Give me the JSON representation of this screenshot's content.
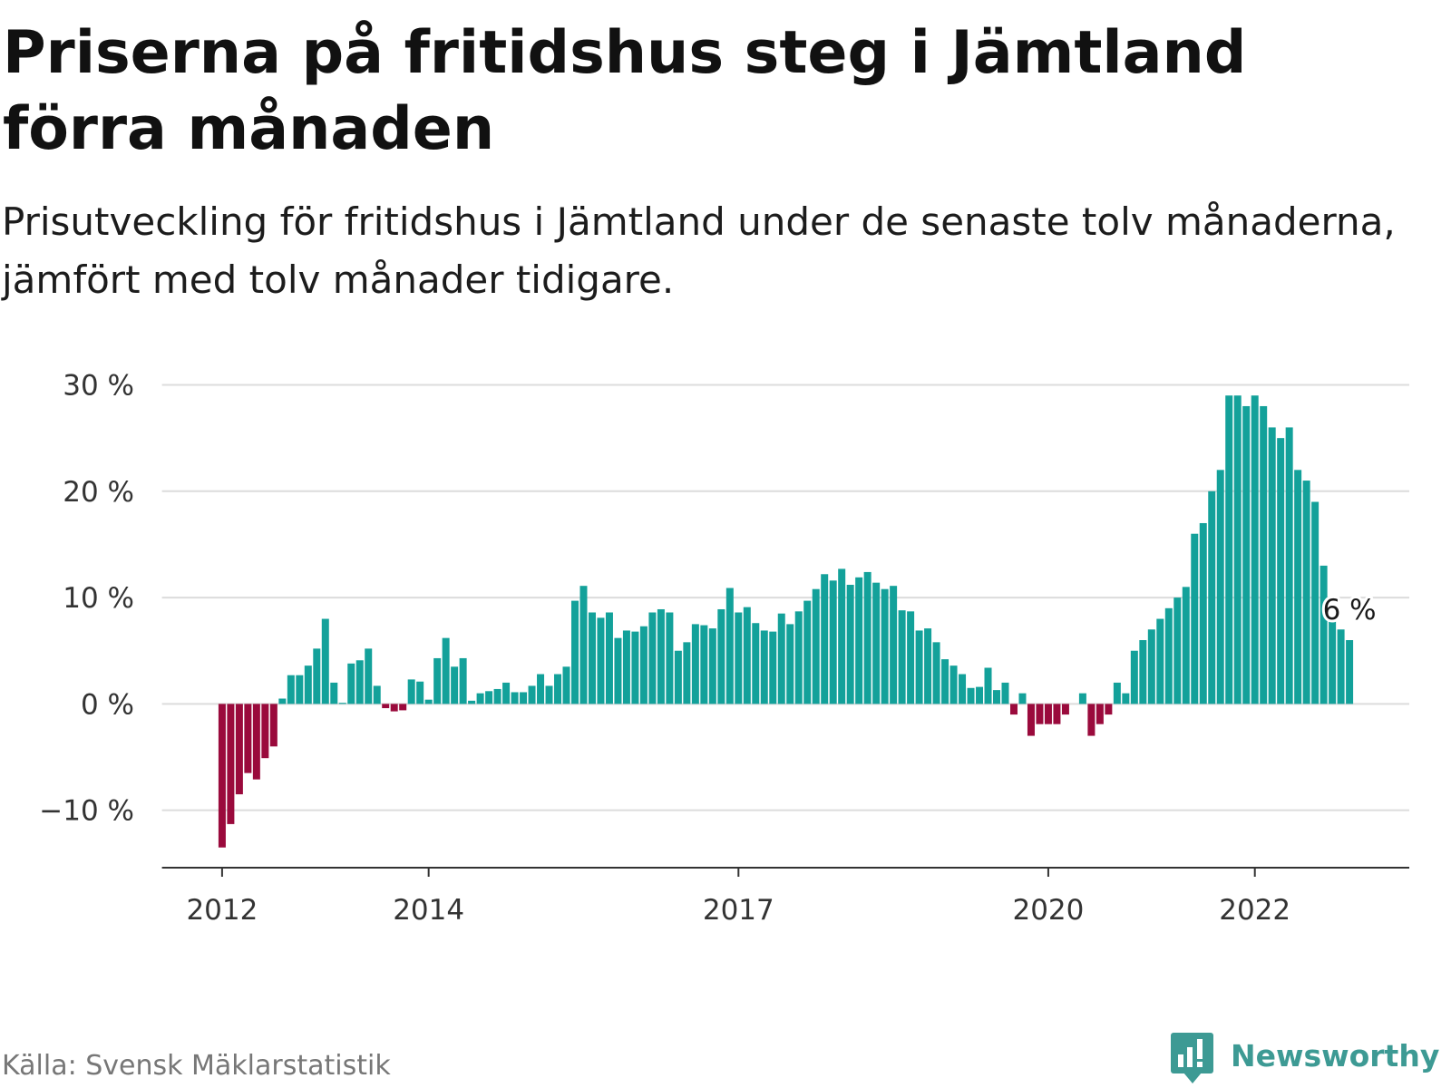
{
  "chart_data": {
    "type": "bar",
    "title": "Priserna på fritidshus steg i Jämtland förra månaden",
    "subtitle": "Prisutveckling för fritidshus i Jämtland under de senaste tolv månaderna, jämfört med tolv månader tidigare.",
    "x": [
      "2012-01",
      "2012-02",
      "2012-03",
      "2012-04",
      "2012-05",
      "2012-06",
      "2012-07",
      "2012-08",
      "2012-09",
      "2012-10",
      "2012-11",
      "2012-12",
      "2013-01",
      "2013-02",
      "2013-03",
      "2013-04",
      "2013-05",
      "2013-06",
      "2013-07",
      "2013-08",
      "2013-09",
      "2013-10",
      "2013-11",
      "2013-12",
      "2014-01",
      "2014-02",
      "2014-03",
      "2014-04",
      "2014-05",
      "2014-06",
      "2014-07",
      "2014-08",
      "2014-09",
      "2014-10",
      "2014-11",
      "2014-12",
      "2015-01",
      "2015-02",
      "2015-03",
      "2015-04",
      "2015-05",
      "2015-06",
      "2015-07",
      "2015-08",
      "2015-09",
      "2015-10",
      "2015-11",
      "2015-12",
      "2016-01",
      "2016-02",
      "2016-03",
      "2016-04",
      "2016-05",
      "2016-06",
      "2016-07",
      "2016-08",
      "2016-09",
      "2016-10",
      "2016-11",
      "2016-12",
      "2017-01",
      "2017-02",
      "2017-03",
      "2017-04",
      "2017-05",
      "2017-06",
      "2017-07",
      "2017-08",
      "2017-09",
      "2017-10",
      "2017-11",
      "2017-12",
      "2018-01",
      "2018-02",
      "2018-03",
      "2018-04",
      "2018-05",
      "2018-06",
      "2018-07",
      "2018-08",
      "2018-09",
      "2018-10",
      "2018-11",
      "2018-12",
      "2019-01",
      "2019-02",
      "2019-03",
      "2019-04",
      "2019-05",
      "2019-06",
      "2019-07",
      "2019-08",
      "2019-09",
      "2019-10",
      "2019-11",
      "2019-12",
      "2020-01",
      "2020-02",
      "2020-03",
      "2020-04",
      "2020-05",
      "2020-06",
      "2020-07",
      "2020-08",
      "2020-09",
      "2020-10",
      "2020-11",
      "2020-12",
      "2021-01",
      "2021-02",
      "2021-03",
      "2021-04",
      "2021-05",
      "2021-06",
      "2021-07",
      "2021-08",
      "2021-09",
      "2021-10",
      "2021-11",
      "2021-12",
      "2022-01",
      "2022-02",
      "2022-03",
      "2022-04",
      "2022-05",
      "2022-06",
      "2022-07",
      "2022-08",
      "2022-09",
      "2022-10",
      "2022-11",
      "2022-12"
    ],
    "values": [
      -13.5,
      -11.3,
      -8.5,
      -6.5,
      -7.1,
      -5.1,
      -4.0,
      0.5,
      2.7,
      2.7,
      3.6,
      5.2,
      8.0,
      2.0,
      0.1,
      3.8,
      4.1,
      5.2,
      1.7,
      -0.4,
      -0.7,
      -0.6,
      2.3,
      2.1,
      0.4,
      4.3,
      6.2,
      3.5,
      4.3,
      0.3,
      1.0,
      1.2,
      1.4,
      2.0,
      1.1,
      1.1,
      1.7,
      2.8,
      1.7,
      2.8,
      3.5,
      9.7,
      11.1,
      8.6,
      8.1,
      8.6,
      6.2,
      6.9,
      6.8,
      7.3,
      8.6,
      8.9,
      8.6,
      5.0,
      5.8,
      7.5,
      7.4,
      7.1,
      8.9,
      10.9,
      8.6,
      9.1,
      7.6,
      6.9,
      6.8,
      8.5,
      7.5,
      8.7,
      9.7,
      10.8,
      12.2,
      11.6,
      12.7,
      11.2,
      11.9,
      12.4,
      11.4,
      10.8,
      11.1,
      8.8,
      8.7,
      6.9,
      7.1,
      5.8,
      4.2,
      3.6,
      2.8,
      1.5,
      1.6,
      3.4,
      1.3,
      2.0,
      -1.0,
      1.0,
      -3.0,
      -1.9,
      -1.9,
      -1.9,
      -1.0,
      0,
      1.0,
      -3.0,
      -1.9,
      -1.0,
      2.0,
      1.0,
      5.0,
      6.0,
      7.0,
      8.0,
      9.0,
      10.0,
      11.0,
      16.0,
      17.0,
      20.0,
      22.0,
      29.0,
      29.0,
      28.0,
      29.0,
      28.0,
      26.0,
      25.0,
      26.0,
      22.0,
      21.0,
      19.0,
      13.0,
      8.0,
      7.0,
      6.0
    ],
    "ylim": [
      -15.4,
      30
    ],
    "y_ticks": [
      {
        "value": 30,
        "label": "30 %"
      },
      {
        "value": 20,
        "label": "20 %"
      },
      {
        "value": 10,
        "label": "10 %"
      },
      {
        "value": 0,
        "label": "0 %"
      },
      {
        "value": -10,
        "label": "−10 %"
      }
    ],
    "x_ticks": [
      "2012",
      "2014",
      "2017",
      "2020",
      "2022"
    ],
    "annotations": [
      {
        "x": "2022-12",
        "label": "6 %"
      }
    ],
    "grid": true,
    "colors": {
      "positive": "#13a19a",
      "negative": "#9a0a3c"
    }
  },
  "footer": {
    "source": "Källa: Svensk Mäklarstatistik",
    "brand": "Newsworthy",
    "brand_icon": "newsworthy-logo-icon",
    "brand_color": "#3d9a94"
  }
}
